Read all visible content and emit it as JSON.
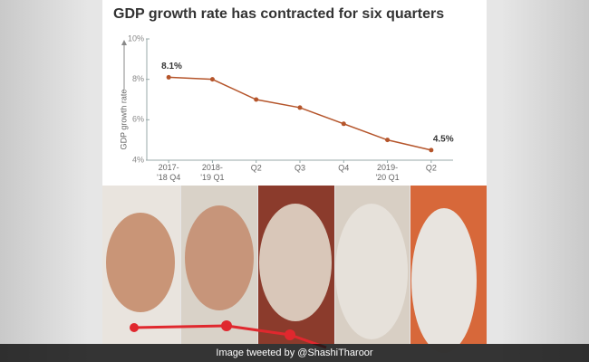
{
  "chart_data": {
    "type": "line",
    "title": "GDP growth rate has contracted for six quarters",
    "y_label": "GDP growth rate",
    "categories": [
      "2017-\n'18 Q4",
      "2018-\n'19 Q1",
      "Q2",
      "Q3",
      "Q4",
      "2019-\n'20 Q1",
      "Q2"
    ],
    "series": [
      {
        "color": "#b5552b",
        "values": [
          8.1,
          8.0,
          7.0,
          6.6,
          5.8,
          5.0,
          4.5
        ],
        "value_labels": [
          "8.1%",
          null,
          null,
          null,
          null,
          null,
          "4.5%"
        ]
      }
    ],
    "ylim": [
      4,
      10
    ],
    "yticks": [
      {
        "value": 4,
        "label": "4%"
      },
      {
        "value": 6,
        "label": "6%"
      },
      {
        "value": 8,
        "label": "8%"
      },
      {
        "value": 10,
        "label": "10%"
      }
    ]
  },
  "caption": "Image tweeted by @ShashiTharoor"
}
